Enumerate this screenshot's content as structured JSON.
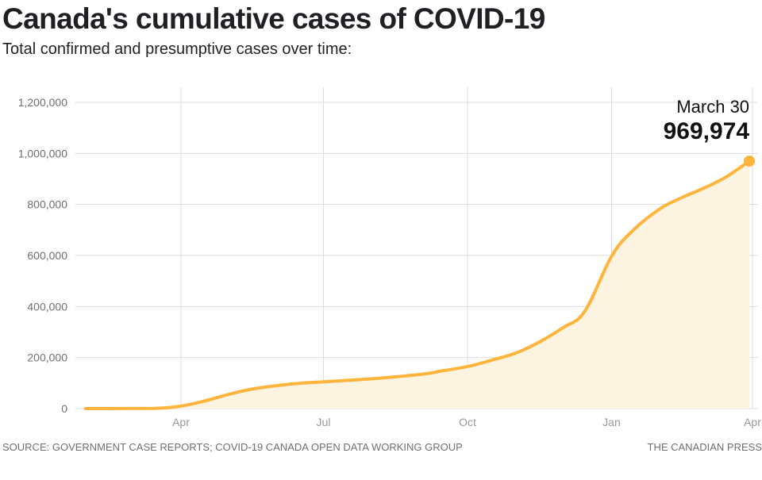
{
  "chart_data": {
    "type": "area",
    "title": "Canada's cumulative cases of COVID-19",
    "subtitle": "Total confirmed and presumptive cases over time:",
    "xlabel": "",
    "ylabel": "",
    "x_type": "date",
    "x": [
      "2020-01-31",
      "2020-03-15",
      "2020-04-01",
      "2020-04-15",
      "2020-05-01",
      "2020-05-15",
      "2020-06-01",
      "2020-06-15",
      "2020-07-01",
      "2020-08-01",
      "2020-09-01",
      "2020-09-15",
      "2020-10-01",
      "2020-10-15",
      "2020-11-01",
      "2020-11-15",
      "2020-12-01",
      "2020-12-15",
      "2021-01-01",
      "2021-01-15",
      "2021-02-01",
      "2021-02-15",
      "2021-03-01",
      "2021-03-15",
      "2021-03-30"
    ],
    "series": [
      {
        "name": "Cumulative cases",
        "color": "#ffb43c",
        "fill": "#fdf3e1",
        "values": [
          0,
          1000,
          10000,
          28000,
          55000,
          75000,
          90000,
          99000,
          105000,
          117000,
          134000,
          148000,
          165000,
          187000,
          218000,
          258000,
          317000,
          382000,
          597000,
          700000,
          783000,
          827000,
          864000,
          907000,
          969974
        ]
      }
    ],
    "xlim": [
      "2020-01-31",
      "2021-04-03"
    ],
    "ylim": [
      0,
      1200000
    ],
    "yticks": [
      0,
      200000,
      400000,
      600000,
      800000,
      1000000,
      1200000
    ],
    "ytick_labels": [
      "0",
      "200,000",
      "400,000",
      "600,000",
      "800,000",
      "1,000,000",
      "1,200,000"
    ],
    "xticks": [
      "2020-04-01",
      "2020-07-01",
      "2020-10-01",
      "2021-01-01",
      "2021-04-01"
    ],
    "xtick_labels": [
      "Apr",
      "Jul",
      "Oct",
      "Jan",
      "Apr"
    ],
    "grid": true,
    "legend": "none",
    "annotation": {
      "date_label": "March 30",
      "value_label": "969,974",
      "x": "2021-03-30",
      "y": 969974
    }
  },
  "footer": {
    "source": "SOURCE: GOVERNMENT CASE REPORTS; COVID-19 CANADA OPEN DATA WORKING GROUP",
    "credit": "THE CANADIAN PRESS"
  }
}
